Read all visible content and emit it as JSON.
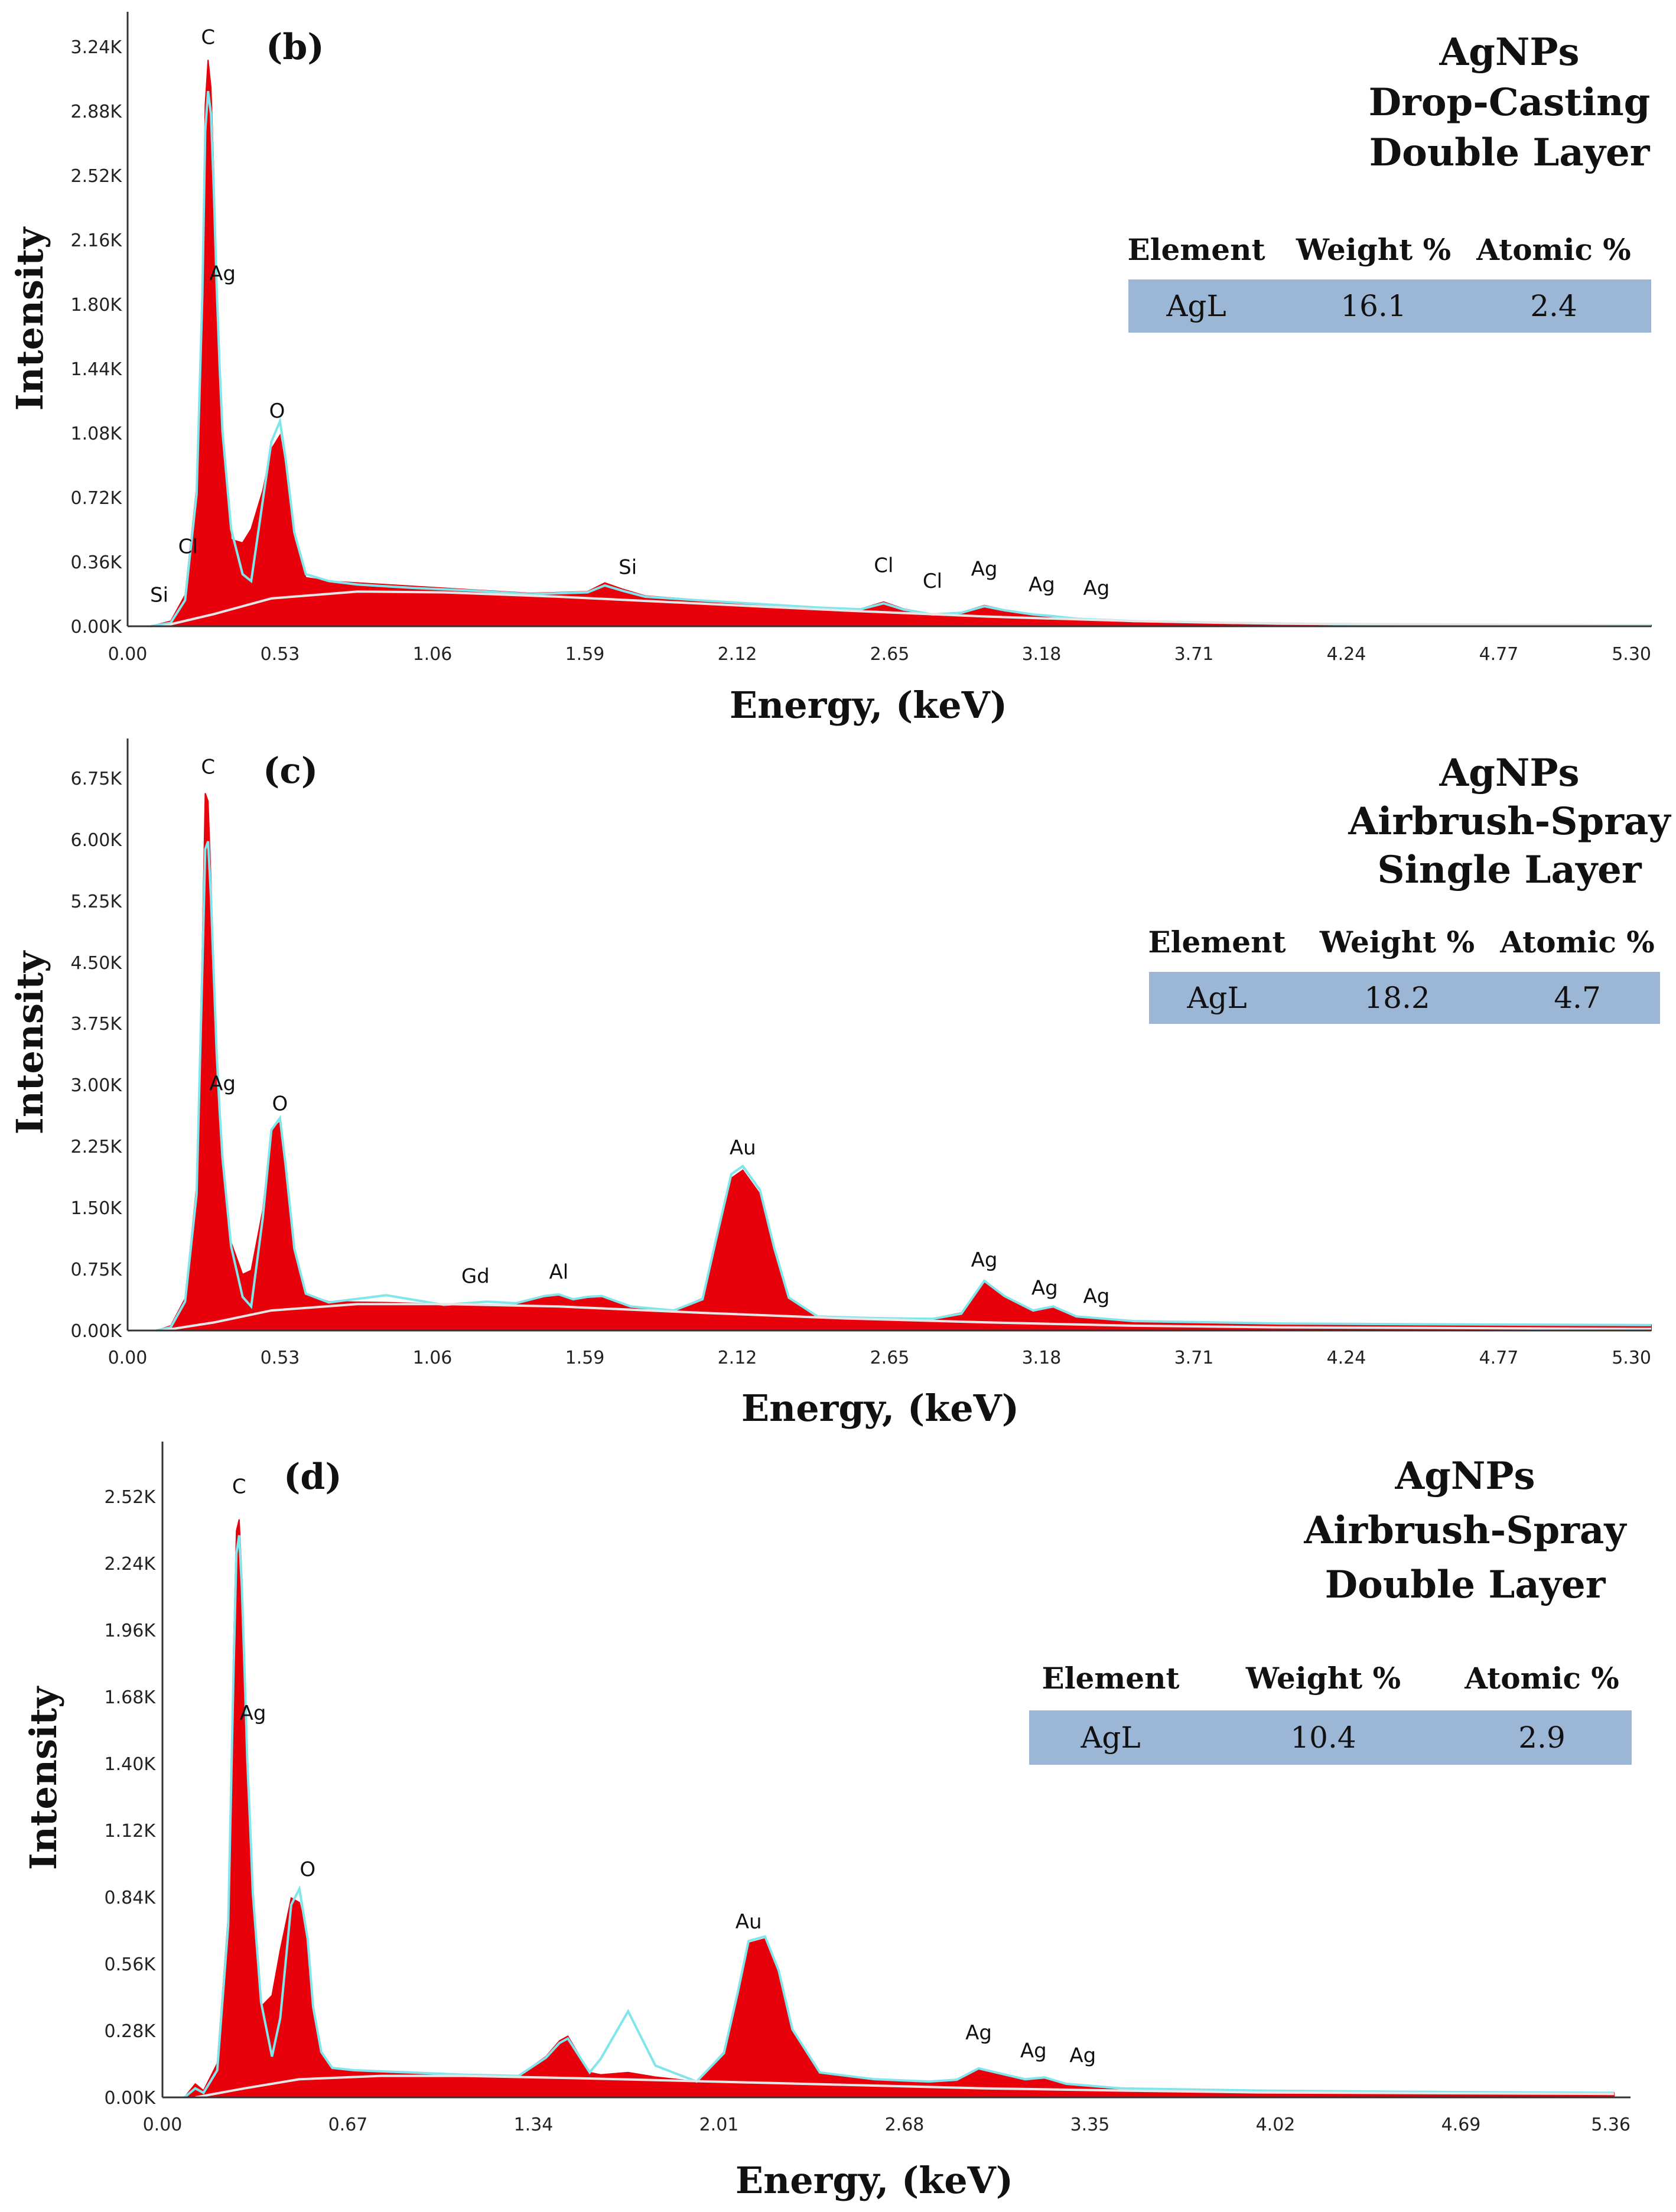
{
  "chart_data": [
    {
      "type": "area",
      "panel_label": "(b)",
      "title_lines": [
        "AgNPs",
        "Drop-Casting",
        "Double Layer"
      ],
      "xlabel": "Energy, (keV)",
      "ylabel": "Intensity",
      "xlim": [
        0,
        5.3
      ],
      "ylim": [
        0,
        3400
      ],
      "x_ticks": [
        "0.00",
        "0.53",
        "1.06",
        "1.59",
        "2.12",
        "2.65",
        "3.18",
        "3.71",
        "4.24",
        "4.77",
        "5.30"
      ],
      "y_ticks": [
        "0.00K",
        "0.36K",
        "0.72K",
        "1.08K",
        "1.44K",
        "1.80K",
        "2.16K",
        "2.52K",
        "2.88K",
        "3.24K"
      ],
      "series": [
        {
          "name": "spectrum",
          "color": "#e8000b",
          "x": [
            0.08,
            0.15,
            0.2,
            0.24,
            0.26,
            0.27,
            0.28,
            0.29,
            0.3,
            0.31,
            0.32,
            0.33,
            0.36,
            0.4,
            0.43,
            0.47,
            0.5,
            0.53,
            0.55,
            0.58,
            0.62,
            0.7,
            0.8,
            1.0,
            1.2,
            1.4,
            1.6,
            1.66,
            1.72,
            1.8,
            2.0,
            2.2,
            2.4,
            2.55,
            2.63,
            2.7,
            2.8,
            2.9,
            2.98,
            3.05,
            3.15,
            3.22,
            3.3,
            3.5,
            3.8,
            4.2,
            4.7,
            5.3
          ],
          "values": [
            0,
            30,
            180,
            800,
            2000,
            3000,
            3260,
            3100,
            2600,
            2000,
            1500,
            1100,
            500,
            480,
            560,
            780,
            1020,
            1100,
            900,
            500,
            280,
            260,
            250,
            230,
            210,
            190,
            200,
            250,
            215,
            175,
            150,
            130,
            110,
            100,
            140,
            100,
            70,
            80,
            120,
            95,
            70,
            60,
            45,
            30,
            20,
            12,
            8,
            6
          ]
        },
        {
          "name": "fit",
          "color": "#7fe6ec",
          "x": [
            0.08,
            0.15,
            0.2,
            0.24,
            0.26,
            0.27,
            0.28,
            0.29,
            0.3,
            0.31,
            0.32,
            0.33,
            0.36,
            0.4,
            0.43,
            0.47,
            0.5,
            0.53,
            0.55,
            0.58,
            0.62,
            0.7,
            0.8,
            1.0,
            1.2,
            1.4,
            1.6,
            1.66,
            1.72,
            1.8,
            2.0,
            2.2,
            2.4,
            2.55,
            2.63,
            2.7,
            2.8,
            2.9,
            2.98,
            3.05,
            3.15,
            3.22,
            3.3,
            3.5,
            3.8,
            4.2,
            4.7,
            5.3
          ],
          "values": [
            0,
            20,
            150,
            760,
            1900,
            2850,
            3080,
            2950,
            2500,
            1950,
            1500,
            1120,
            560,
            300,
            260,
            720,
            1060,
            1180,
            960,
            540,
            300,
            260,
            240,
            220,
            205,
            185,
            195,
            235,
            205,
            170,
            148,
            128,
            108,
            98,
            132,
            96,
            68,
            78,
            115,
            92,
            68,
            58,
            44,
            30,
            20,
            12,
            8,
            6
          ]
        },
        {
          "name": "background",
          "color": "#e6e6e6",
          "x": [
            0.12,
            0.3,
            0.5,
            0.8,
            1.1,
            1.5,
            2.0,
            2.5,
            3.0,
            3.5,
            4.0,
            5.3
          ],
          "values": [
            0,
            70,
            160,
            200,
            195,
            170,
            130,
            90,
            55,
            30,
            15,
            5
          ]
        }
      ],
      "peak_labels": [
        {
          "text": "C",
          "x": 0.28,
          "y": 3330
        },
        {
          "text": "Ag",
          "x": 0.33,
          "y": 1970
        },
        {
          "text": "O",
          "x": 0.52,
          "y": 1180
        },
        {
          "text": "Cl",
          "x": 0.21,
          "y": 400
        },
        {
          "text": "Si",
          "x": 0.11,
          "y": 120
        },
        {
          "text": "Si",
          "x": 1.74,
          "y": 280
        },
        {
          "text": "Cl",
          "x": 2.63,
          "y": 290
        },
        {
          "text": "Cl",
          "x": 2.8,
          "y": 200
        },
        {
          "text": "Ag",
          "x": 2.98,
          "y": 270
        },
        {
          "text": "Ag",
          "x": 3.18,
          "y": 180
        },
        {
          "text": "Ag",
          "x": 3.37,
          "y": 160
        }
      ],
      "table": {
        "headers": [
          "Element",
          "Weight %",
          "Atomic %"
        ],
        "row": [
          "AgL",
          "16.1",
          "2.4"
        ],
        "row_color": "#9cb6d6"
      }
    },
    {
      "type": "area",
      "panel_label": "(c)",
      "title_lines": [
        "AgNPs",
        "Airbrush-Spray",
        "Single Layer"
      ],
      "xlabel": "Energy, (keV)",
      "ylabel": "Intensity",
      "xlim": [
        0,
        5.3
      ],
      "ylim": [
        0,
        7050
      ],
      "x_ticks": [
        "0.00",
        "0.53",
        "1.06",
        "1.59",
        "2.12",
        "2.65",
        "3.18",
        "3.71",
        "4.24",
        "4.77",
        "5.30"
      ],
      "y_ticks": [
        "0.00K",
        "0.75K",
        "1.50K",
        "2.25K",
        "3.00K",
        "3.75K",
        "4.50K",
        "5.25K",
        "6.00K",
        "6.75K"
      ],
      "series": [
        {
          "name": "spectrum",
          "color": "#e8000b",
          "x": [
            0.1,
            0.15,
            0.2,
            0.24,
            0.26,
            0.27,
            0.28,
            0.29,
            0.3,
            0.31,
            0.32,
            0.33,
            0.36,
            0.4,
            0.43,
            0.47,
            0.5,
            0.53,
            0.55,
            0.58,
            0.62,
            0.7,
            0.9,
            1.1,
            1.25,
            1.35,
            1.45,
            1.5,
            1.55,
            1.6,
            1.65,
            1.75,
            1.9,
            2.0,
            2.05,
            2.1,
            2.14,
            2.2,
            2.25,
            2.3,
            2.4,
            2.6,
            2.8,
            2.9,
            2.98,
            3.05,
            3.15,
            3.22,
            3.3,
            3.5,
            4.0,
            4.5,
            5.3
          ],
          "values": [
            0,
            60,
            400,
            1800,
            4800,
            6700,
            6600,
            5600,
            4500,
            3500,
            2800,
            2200,
            1100,
            700,
            750,
            1500,
            2500,
            2600,
            2000,
            1000,
            450,
            360,
            350,
            330,
            320,
            320,
            420,
            440,
            380,
            400,
            410,
            300,
            250,
            400,
            1200,
            1900,
            2000,
            1700,
            1000,
            400,
            180,
            160,
            150,
            220,
            600,
            420,
            250,
            300,
            180,
            120,
            90,
            80,
            70
          ]
        },
        {
          "name": "fit",
          "color": "#7fe6ec",
          "x": [
            0.1,
            0.15,
            0.2,
            0.24,
            0.26,
            0.27,
            0.28,
            0.29,
            0.3,
            0.31,
            0.32,
            0.33,
            0.36,
            0.4,
            0.43,
            0.47,
            0.5,
            0.53,
            0.55,
            0.58,
            0.62,
            0.7,
            0.9,
            1.1,
            1.25,
            1.35,
            1.45,
            1.5,
            1.55,
            1.6,
            1.65,
            1.75,
            1.9,
            2.0,
            2.05,
            2.1,
            2.14,
            2.2,
            2.25,
            2.3,
            2.4,
            2.6,
            2.8,
            2.9,
            2.98,
            3.05,
            3.15,
            3.22,
            3.3,
            3.5,
            4.0,
            4.5,
            5.3
          ],
          "values": [
            0,
            40,
            360,
            1700,
            4500,
            6000,
            6100,
            5400,
            4400,
            3450,
            2750,
            2150,
            1050,
            420,
            300,
            1400,
            2500,
            2650,
            2050,
            1020,
            460,
            350,
            440,
            320,
            360,
            340,
            430,
            450,
            390,
            420,
            430,
            300,
            250,
            390,
            1180,
            1950,
            2050,
            1750,
            1020,
            410,
            175,
            155,
            145,
            210,
            620,
            430,
            250,
            300,
            175,
            118,
            88,
            78,
            68
          ]
        },
        {
          "name": "background",
          "color": "#e6e6e6",
          "x": [
            0.12,
            0.3,
            0.5,
            0.8,
            1.1,
            1.5,
            2.0,
            2.5,
            3.0,
            3.5,
            4.0,
            5.3
          ],
          "values": [
            0,
            100,
            250,
            330,
            330,
            300,
            220,
            150,
            100,
            60,
            40,
            20
          ]
        }
      ],
      "peak_labels": [
        {
          "text": "C",
          "x": 0.28,
          "y": 6900
        },
        {
          "text": "Ag",
          "x": 0.33,
          "y": 2950
        },
        {
          "text": "O",
          "x": 0.53,
          "y": 2700
        },
        {
          "text": "Gd",
          "x": 1.21,
          "y": 550
        },
        {
          "text": "Al",
          "x": 1.5,
          "y": 600
        },
        {
          "text": "Au",
          "x": 2.14,
          "y": 2150
        },
        {
          "text": "Ag",
          "x": 2.98,
          "y": 750
        },
        {
          "text": "Ag",
          "x": 3.19,
          "y": 400
        },
        {
          "text": "Ag",
          "x": 3.37,
          "y": 300
        }
      ],
      "table": {
        "headers": [
          "Element",
          "Weight %",
          "Atomic %"
        ],
        "row": [
          "AgL",
          "18.2",
          "4.7"
        ],
        "row_color": "#9cb6d6"
      }
    },
    {
      "type": "area",
      "panel_label": "(d)",
      "title_lines": [
        "AgNPs",
        "Airbrush-Spray",
        "Double Layer"
      ],
      "xlabel": "Energy, (keV)",
      "ylabel": "Intensity",
      "xlim": [
        0,
        5.3
      ],
      "ylim": [
        0,
        2750
      ],
      "x_ticks": [
        "0.00",
        "0.67",
        "1.34",
        "2.01",
        "2.68",
        "3.35",
        "4.02",
        "4.69",
        "5.36"
      ],
      "y_ticks": [
        "0.00K",
        "0.28K",
        "0.56K",
        "0.84K",
        "1.12K",
        "1.40K",
        "1.68K",
        "1.96K",
        "2.24K",
        "2.52K"
      ],
      "series": [
        {
          "name": "spectrum",
          "color": "#e8000b",
          "x": [
            0.08,
            0.12,
            0.15,
            0.2,
            0.24,
            0.26,
            0.27,
            0.28,
            0.29,
            0.3,
            0.31,
            0.32,
            0.33,
            0.36,
            0.4,
            0.43,
            0.47,
            0.5,
            0.53,
            0.55,
            0.58,
            0.62,
            0.7,
            0.9,
            1.1,
            1.3,
            1.4,
            1.45,
            1.48,
            1.52,
            1.56,
            1.6,
            1.7,
            1.8,
            1.95,
            2.05,
            2.1,
            2.14,
            2.2,
            2.25,
            2.3,
            2.4,
            2.6,
            2.8,
            2.9,
            2.98,
            3.05,
            3.15,
            3.22,
            3.3,
            3.5,
            4.0,
            4.5,
            5.3
          ],
          "values": [
            0,
            60,
            30,
            150,
            800,
            2000,
            2500,
            2550,
            2300,
            1900,
            1500,
            1200,
            900,
            400,
            450,
            650,
            880,
            860,
            700,
            400,
            200,
            130,
            120,
            110,
            100,
            95,
            180,
            250,
            270,
            190,
            110,
            100,
            110,
            90,
            70,
            200,
            450,
            680,
            700,
            550,
            300,
            110,
            80,
            70,
            80,
            130,
            110,
            80,
            90,
            60,
            40,
            30,
            25,
            20
          ]
        },
        {
          "name": "fit",
          "color": "#7fe6ec",
          "x": [
            0.08,
            0.12,
            0.15,
            0.2,
            0.24,
            0.26,
            0.27,
            0.28,
            0.29,
            0.3,
            0.31,
            0.32,
            0.33,
            0.36,
            0.4,
            0.43,
            0.47,
            0.5,
            0.53,
            0.55,
            0.58,
            0.62,
            0.7,
            0.9,
            1.1,
            1.3,
            1.4,
            1.45,
            1.48,
            1.52,
            1.56,
            1.6,
            1.7,
            1.8,
            1.95,
            2.05,
            2.1,
            2.14,
            2.2,
            2.25,
            2.3,
            2.4,
            2.6,
            2.8,
            2.9,
            2.98,
            3.05,
            3.15,
            3.22,
            3.3,
            3.5,
            4.0,
            4.5,
            5.3
          ],
          "values": [
            0,
            40,
            20,
            120,
            760,
            1900,
            2400,
            2480,
            2250,
            1870,
            1480,
            1200,
            900,
            420,
            180,
            350,
            850,
            920,
            700,
            400,
            200,
            130,
            120,
            110,
            100,
            95,
            175,
            240,
            260,
            185,
            110,
            170,
            380,
            140,
            70,
            195,
            460,
            690,
            710,
            560,
            300,
            110,
            80,
            70,
            78,
            128,
            108,
            80,
            88,
            60,
            40,
            30,
            25,
            20
          ]
        },
        {
          "name": "background",
          "color": "#e6e6e6",
          "x": [
            0.12,
            0.3,
            0.5,
            0.8,
            1.1,
            1.5,
            2.0,
            2.5,
            3.0,
            3.5,
            4.0,
            5.3
          ],
          "values": [
            0,
            40,
            80,
            95,
            95,
            85,
            70,
            55,
            40,
            30,
            22,
            15
          ]
        }
      ],
      "peak_labels": [
        {
          "text": "C",
          "x": 0.28,
          "y": 2650
        },
        {
          "text": "Ag",
          "x": 0.33,
          "y": 1650
        },
        {
          "text": "O",
          "x": 0.53,
          "y": 960
        },
        {
          "text": "Au",
          "x": 2.14,
          "y": 730
        },
        {
          "text": "Ag",
          "x": 2.98,
          "y": 240
        },
        {
          "text": "Ag",
          "x": 3.18,
          "y": 160
        },
        {
          "text": "Ag",
          "x": 3.36,
          "y": 140
        }
      ],
      "table": {
        "headers": [
          "Element",
          "Weight %",
          "Atomic %"
        ],
        "row": [
          "AgL",
          "10.4",
          "2.9"
        ],
        "row_color": "#9cb6d6"
      }
    }
  ]
}
